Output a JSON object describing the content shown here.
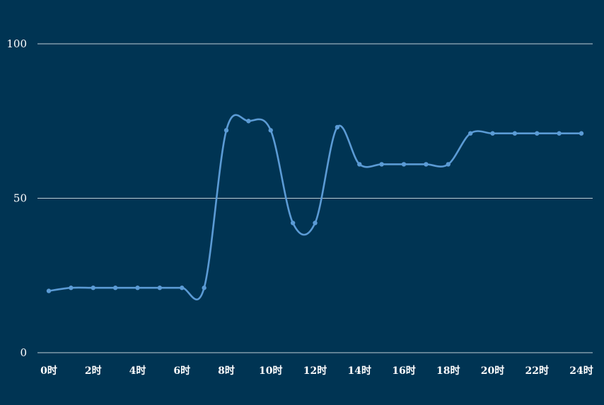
{
  "chart_data": {
    "type": "line",
    "title": "",
    "xlabel": "",
    "ylabel": "",
    "x": [
      0,
      1,
      2,
      3,
      4,
      5,
      6,
      7,
      8,
      9,
      10,
      11,
      12,
      13,
      14,
      15,
      16,
      17,
      18,
      19,
      20,
      21,
      22,
      23,
      24
    ],
    "x_tick_labels": [
      "0时",
      "2时",
      "4时",
      "6时",
      "8时",
      "10时",
      "12时",
      "14时",
      "16时",
      "18时",
      "20时",
      "22时",
      "24时"
    ],
    "x_tick_values": [
      0,
      2,
      4,
      6,
      8,
      10,
      12,
      14,
      16,
      18,
      20,
      22,
      24
    ],
    "y_tick_labels": [
      "0",
      "50",
      "100"
    ],
    "y_tick_values": [
      0,
      50,
      100
    ],
    "ylim": [
      0,
      100
    ],
    "xlim": [
      0,
      24
    ],
    "grid": "horizontal",
    "series": [
      {
        "values": [
          20,
          21,
          21,
          21,
          21,
          21,
          21,
          21,
          72,
          75,
          72,
          42,
          42,
          73,
          61,
          61,
          61,
          61,
          61,
          71,
          71,
          71,
          71,
          71,
          71
        ],
        "color": "#5b9bd5"
      }
    ],
    "colors": {
      "background": "#003453",
      "grid": "#ffffff",
      "text": "#ffffff"
    }
  }
}
